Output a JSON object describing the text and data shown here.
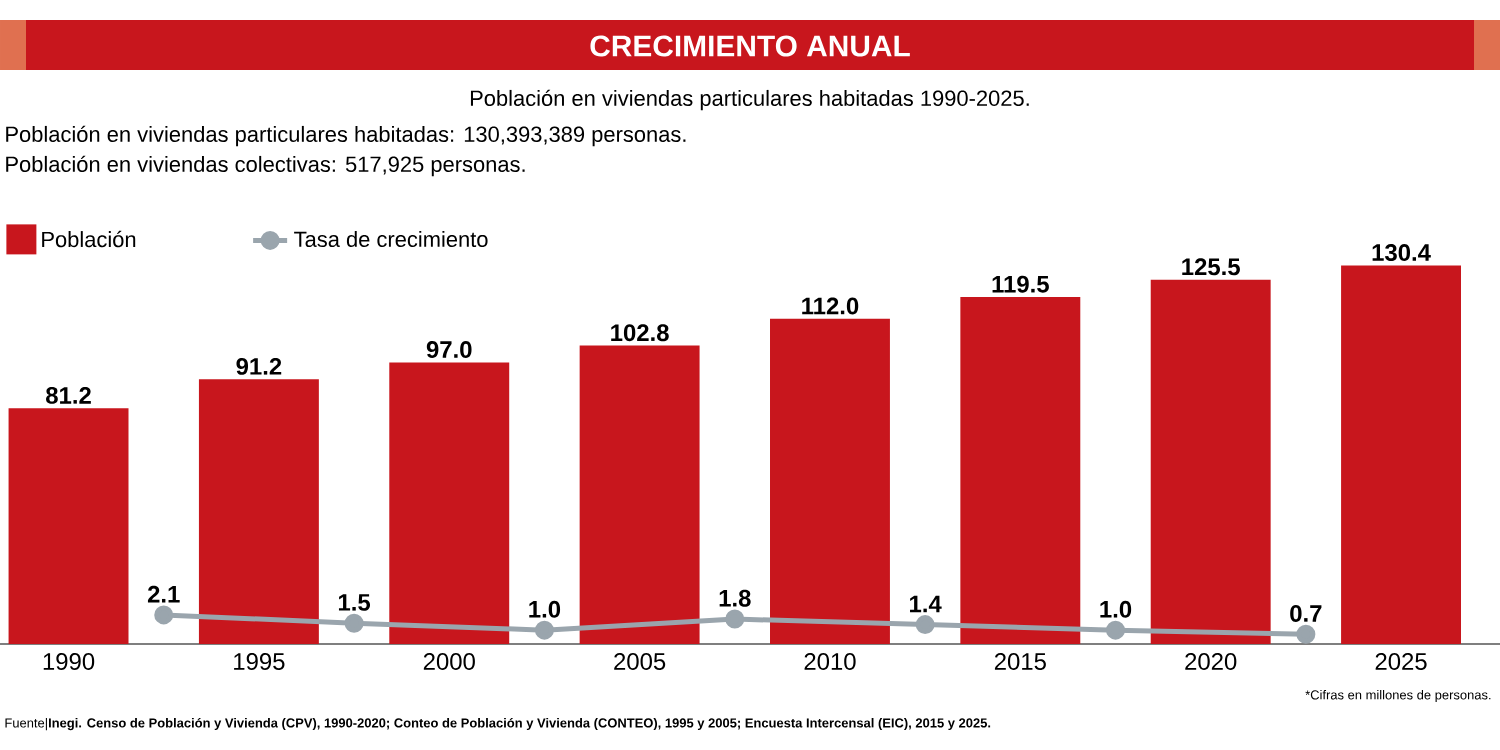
{
  "chart_data": {
    "type": "bar",
    "title": "CRECIMIENTO ANUAL",
    "subtitle": "Población en viviendas particulares habitadas 1990-2025.",
    "annotations": [
      "Población en viviendas particulares habitadas: 130,393,389 personas.",
      "Población en viviendas colectivas: 517,925 personas.",
      "*Cifras en millones de personas.",
      "Fuente|**Inegi. Censo de Población y Vivienda (CPV), 1990-2020; Conteo de Población y Vivienda (CONTEO), 1995 y 2005; Encuesta Intercensal (EIC), 2015 y 2025.**"
    ],
    "x": [
      1990,
      1995,
      2000,
      2005,
      2010,
      2015,
      2020,
      2025
    ],
    "xlim": [
      1988.2,
      2027.6
    ],
    "xticks": [
      1990,
      1995,
      2000,
      2005,
      2010,
      2015,
      2020,
      2025
    ],
    "series": [
      {
        "name": "Población",
        "color": "#c8161d",
        "values": [
          81.2,
          91.2,
          97.0,
          102.8,
          112.0,
          119.5,
          125.5,
          130.4
        ],
        "value_labels": [
          "81.2",
          "91.2",
          "97.0",
          "102.8",
          "112.0",
          "119.5",
          "125.5",
          "130.4"
        ]
      },
      {
        "name": "Tasa de crecimiento",
        "type": "line",
        "axis": "y2",
        "color": "#9aa5ad",
        "marker": "circle",
        "x": [
          1992.5,
          1997.5,
          2002.5,
          2007.5,
          2012.5,
          2017.5,
          2022.5
        ],
        "values": [
          2.1,
          1.5,
          1.0,
          1.8,
          1.4,
          1.0,
          0.7
        ],
        "value_labels": [
          "2.1",
          "1.5",
          "1.0",
          "1.8",
          "1.4",
          "1.0",
          "0.7"
        ]
      }
    ],
    "legend": "top left",
    "tick_labels": "x"
  }
}
